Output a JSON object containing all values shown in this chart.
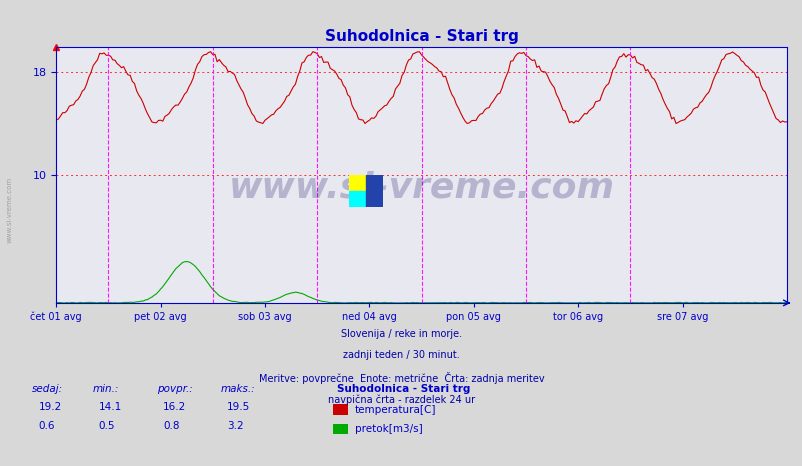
{
  "title": "Suhodolnica - Stari trg",
  "title_color": "#0000cc",
  "bg_color": "#d8d8d8",
  "plot_bg_color": "#e8e8f0",
  "grid_color": "#ffffff",
  "axis_color": "#0000cc",
  "x_tick_labels": [
    "čet 01 avg",
    "pet 02 avg",
    "sob 03 avg",
    "ned 04 avg",
    "pon 05 avg",
    "tor 06 avg",
    "sre 07 avg"
  ],
  "x_tick_positions": [
    0,
    48,
    96,
    144,
    192,
    240,
    288
  ],
  "vline_positions": [
    24,
    72,
    120,
    168,
    216,
    264
  ],
  "vline_color": "#ff00ff",
  "hline_values": [
    10,
    18
  ],
  "hline_color": "#ff0000",
  "y_label_color": "#0000cc",
  "temp_color": "#cc0000",
  "flow_color": "#00aa00",
  "watermark": "www.si-vreme.com",
  "watermark_color": "#1a1a6e",
  "watermark_alpha": 0.25,
  "footnote_lines": [
    "Slovenija / reke in morje.",
    "zadnji teden / 30 minut.",
    "Meritve: povprečne  Enote: metrične  Črta: zadnja meritev",
    "navpična črta - razdelek 24 ur"
  ],
  "footnote_color": "#0000aa",
  "stats_color": "#0000cc",
  "stats": {
    "sedaj": {
      "temp": 19.2,
      "flow": 0.6
    },
    "min": {
      "temp": 14.1,
      "flow": 0.5
    },
    "povpr": {
      "temp": 16.2,
      "flow": 0.8
    },
    "maks": {
      "temp": 19.5,
      "flow": 3.2
    }
  },
  "legend_title": "Suhodolnica - Stari trg",
  "legend_entries": [
    "temperatura[C]",
    "pretok[m3/s]"
  ],
  "legend_colors": [
    "#cc0000",
    "#00aa00"
  ],
  "ylim": [
    0,
    20
  ],
  "xlim": [
    0,
    336
  ],
  "n_points": 337,
  "sidebar_text": "www.si-vreme.com",
  "sidebar_color": "#888888"
}
